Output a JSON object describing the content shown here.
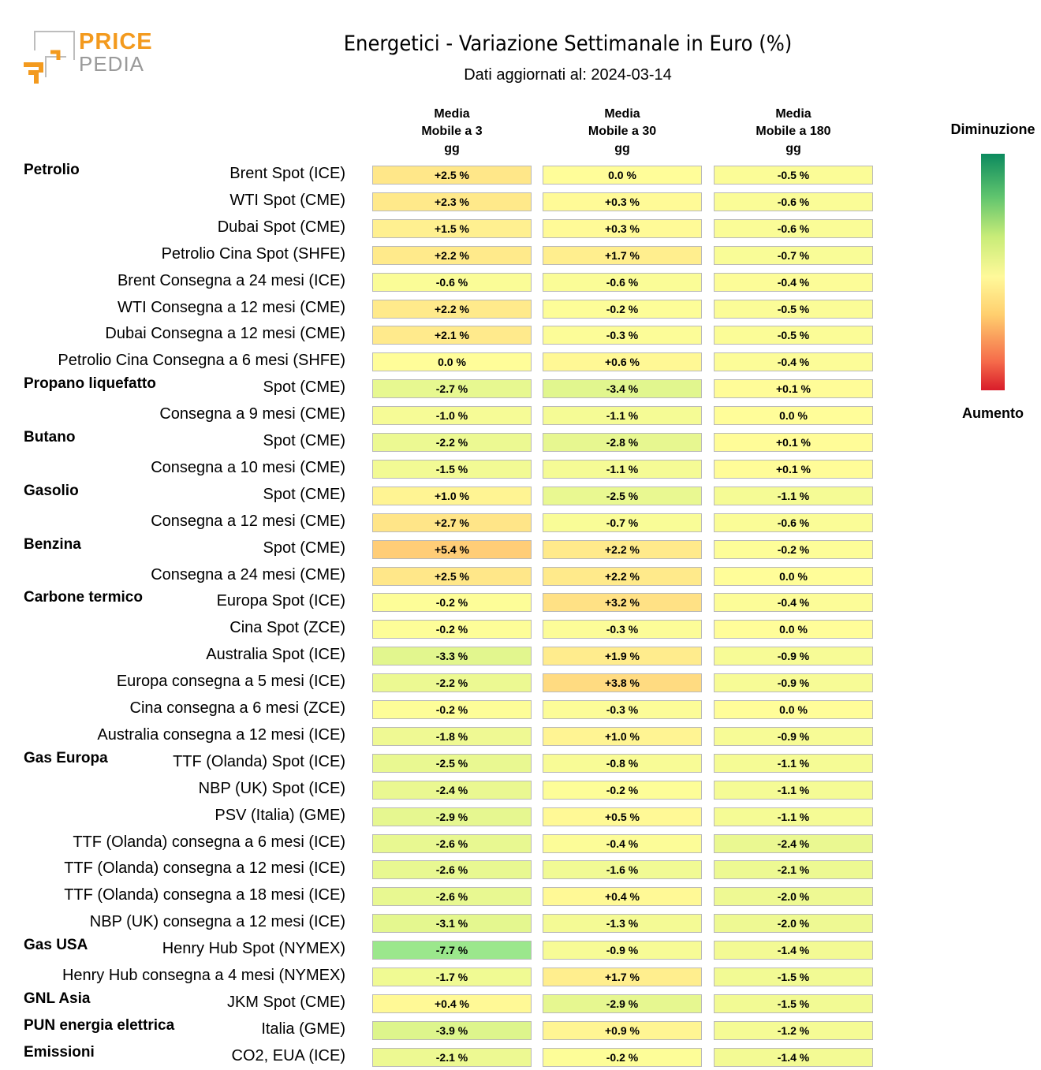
{
  "logo": {
    "line1": "PRICE",
    "line2": "PEDIA",
    "color_primary": "#f39a1e",
    "color_secondary": "#9a9a9a"
  },
  "chart_data": {
    "type": "table",
    "title": "Energetici - Variazione Settimanale in Euro (%)",
    "subtitle": "Dati aggiornati al: 2024-03-14",
    "columns": [
      "Media\nMobile a 3\ngg",
      "Media\nMobile a 30\ngg",
      "Media\nMobile a 180\ngg"
    ],
    "legend": {
      "top": "Diminuzione",
      "bottom": "Aumento"
    },
    "rows": [
      {
        "group": "Petrolio",
        "label": "Brent Spot (ICE)",
        "values": [
          "+2.5 %",
          "0.0 %",
          "-0.5 %"
        ]
      },
      {
        "group": "",
        "label": "WTI Spot (CME)",
        "values": [
          "+2.3 %",
          "+0.3 %",
          "-0.6 %"
        ]
      },
      {
        "group": "",
        "label": "Dubai Spot (CME)",
        "values": [
          "+1.5 %",
          "+0.3 %",
          "-0.6 %"
        ]
      },
      {
        "group": "",
        "label": "Petrolio Cina Spot (SHFE)",
        "values": [
          "+2.2 %",
          "+1.7 %",
          "-0.7 %"
        ]
      },
      {
        "group": "",
        "label": "Brent Consegna a 24 mesi (ICE)",
        "values": [
          "-0.6 %",
          "-0.6 %",
          "-0.4 %"
        ]
      },
      {
        "group": "",
        "label": "WTI Consegna a 12 mesi (CME)",
        "values": [
          "+2.2 %",
          "-0.2 %",
          "-0.5 %"
        ]
      },
      {
        "group": "",
        "label": "Dubai Consegna a 12 mesi (CME)",
        "values": [
          "+2.1 %",
          "-0.3 %",
          "-0.5 %"
        ]
      },
      {
        "group": "",
        "label": "Petrolio Cina Consegna a 6 mesi (SHFE)",
        "values": [
          "0.0 %",
          "+0.6 %",
          "-0.4 %"
        ]
      },
      {
        "group": "Propano liquefatto",
        "label": "Spot (CME)",
        "values": [
          "-2.7 %",
          "-3.4 %",
          "+0.1 %"
        ]
      },
      {
        "group": "",
        "label": "Consegna a 9 mesi (CME)",
        "values": [
          "-1.0 %",
          "-1.1 %",
          "0.0 %"
        ]
      },
      {
        "group": "Butano",
        "label": "Spot (CME)",
        "values": [
          "-2.2 %",
          "-2.8 %",
          "+0.1 %"
        ]
      },
      {
        "group": "",
        "label": "Consegna a 10 mesi (CME)",
        "values": [
          "-1.5 %",
          "-1.1 %",
          "+0.1 %"
        ]
      },
      {
        "group": "Gasolio",
        "label": "Spot (CME)",
        "values": [
          "+1.0 %",
          "-2.5 %",
          "-1.1 %"
        ]
      },
      {
        "group": "",
        "label": "Consegna a 12 mesi (CME)",
        "values": [
          "+2.7 %",
          "-0.7 %",
          "-0.6 %"
        ]
      },
      {
        "group": "Benzina",
        "label": "Spot (CME)",
        "values": [
          "+5.4 %",
          "+2.2 %",
          "-0.2 %"
        ]
      },
      {
        "group": "",
        "label": "Consegna a 24 mesi (CME)",
        "values": [
          "+2.5 %",
          "+2.2 %",
          "0.0 %"
        ]
      },
      {
        "group": "Carbone termico",
        "label": "Europa Spot (ICE)",
        "values": [
          "-0.2 %",
          "+3.2 %",
          "-0.4 %"
        ]
      },
      {
        "group": "",
        "label": "Cina Spot (ZCE)",
        "values": [
          "-0.2 %",
          "-0.3 %",
          "0.0 %"
        ]
      },
      {
        "group": "",
        "label": "Australia Spot (ICE)",
        "values": [
          "-3.3 %",
          "+1.9 %",
          "-0.9 %"
        ]
      },
      {
        "group": "",
        "label": "Europa consegna a 5 mesi (ICE)",
        "values": [
          "-2.2 %",
          "+3.8 %",
          "-0.9 %"
        ]
      },
      {
        "group": "",
        "label": "Cina consegna a 6 mesi (ZCE)",
        "values": [
          "-0.2 %",
          "-0.3 %",
          "0.0 %"
        ]
      },
      {
        "group": "",
        "label": "Australia consegna a 12 mesi (ICE)",
        "values": [
          "-1.8 %",
          "+1.0 %",
          "-0.9 %"
        ]
      },
      {
        "group": "Gas Europa",
        "label": "TTF (Olanda) Spot (ICE)",
        "values": [
          "-2.5 %",
          "-0.8 %",
          "-1.1 %"
        ]
      },
      {
        "group": "",
        "label": "NBP (UK) Spot (ICE)",
        "values": [
          "-2.4 %",
          "-0.2 %",
          "-1.1 %"
        ]
      },
      {
        "group": "",
        "label": "PSV (Italia) (GME)",
        "values": [
          "-2.9 %",
          "+0.5 %",
          "-1.1 %"
        ]
      },
      {
        "group": "",
        "label": "TTF (Olanda) consegna a 6 mesi (ICE)",
        "values": [
          "-2.6 %",
          "-0.4 %",
          "-2.4 %"
        ]
      },
      {
        "group": "",
        "label": "TTF (Olanda) consegna a 12 mesi (ICE)",
        "values": [
          "-2.6 %",
          "-1.6 %",
          "-2.1 %"
        ]
      },
      {
        "group": "",
        "label": "TTF (Olanda) consegna a 18 mesi (ICE)",
        "values": [
          "-2.6 %",
          "+0.4 %",
          "-2.0 %"
        ]
      },
      {
        "group": "",
        "label": "NBP (UK) consegna a 12 mesi (ICE)",
        "values": [
          "-3.1 %",
          "-1.3 %",
          "-2.0 %"
        ]
      },
      {
        "group": "Gas USA",
        "label": "Henry Hub Spot (NYMEX)",
        "values": [
          "-7.7 %",
          "-0.9 %",
          "-1.4 %"
        ]
      },
      {
        "group": "",
        "label": "Henry Hub consegna a 4 mesi (NYMEX)",
        "values": [
          "-1.7 %",
          "+1.7 %",
          "-1.5 %"
        ]
      },
      {
        "group": "GNL Asia",
        "label": "JKM Spot (CME)",
        "values": [
          "+0.4 %",
          "-2.9 %",
          "-1.5 %"
        ]
      },
      {
        "group": "PUN energia elettrica",
        "label": "Italia (GME)",
        "values": [
          "-3.9 %",
          "+0.9 %",
          "-1.2 %"
        ]
      },
      {
        "group": "Emissioni",
        "label": "CO2, EUA (ICE)",
        "values": [
          "-2.1 %",
          "-0.2 %",
          "-1.4 %"
        ]
      }
    ]
  }
}
